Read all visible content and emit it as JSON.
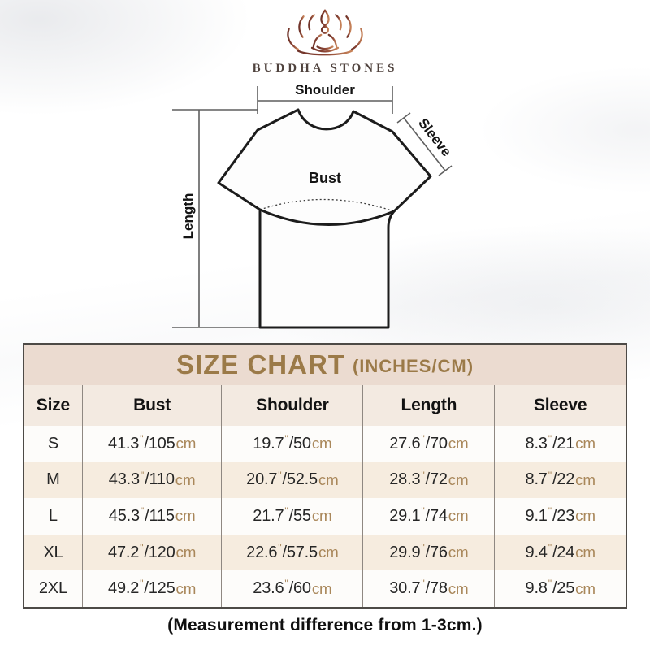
{
  "logo": {
    "brand": "BUDDHA STONES"
  },
  "diagram": {
    "shoulder_label": "Shoulder",
    "sleeve_label": "Sleeve",
    "bust_label": "Bust",
    "length_label": "Length"
  },
  "size_chart": {
    "title": "SIZE CHART",
    "title_suffix": "(INCHES/CM)",
    "columns": [
      "Size",
      "Bust",
      "Shoulder",
      "Length",
      "Sleeve"
    ],
    "unit_inch_mark": "\"",
    "unit_cm": "cm",
    "rows": [
      {
        "size": "S",
        "bust": {
          "in": "41.3",
          "cm": "105"
        },
        "shoulder": {
          "in": "19.7",
          "cm": "50"
        },
        "length": {
          "in": "27.6",
          "cm": "70"
        },
        "sleeve": {
          "in": "8.3",
          "cm": "21"
        }
      },
      {
        "size": "M",
        "bust": {
          "in": "43.3",
          "cm": "110"
        },
        "shoulder": {
          "in": "20.7",
          "cm": "52.5"
        },
        "length": {
          "in": "28.3",
          "cm": "72"
        },
        "sleeve": {
          "in": "8.7",
          "cm": "22"
        }
      },
      {
        "size": "L",
        "bust": {
          "in": "45.3",
          "cm": "115"
        },
        "shoulder": {
          "in": "21.7",
          "cm": "55"
        },
        "length": {
          "in": "29.1",
          "cm": "74"
        },
        "sleeve": {
          "in": "9.1",
          "cm": "23"
        }
      },
      {
        "size": "XL",
        "bust": {
          "in": "47.2",
          "cm": "120"
        },
        "shoulder": {
          "in": "22.6",
          "cm": "57.5"
        },
        "length": {
          "in": "29.9",
          "cm": "76"
        },
        "sleeve": {
          "in": "9.4",
          "cm": "24"
        }
      },
      {
        "size": "2XL",
        "bust": {
          "in": "49.2",
          "cm": "125"
        },
        "shoulder": {
          "in": "23.6",
          "cm": "60"
        },
        "length": {
          "in": "30.7",
          "cm": "78"
        },
        "sleeve": {
          "in": "9.8",
          "cm": "25"
        }
      }
    ]
  },
  "footnote": "(Measurement difference from 1-3cm.)",
  "colors": {
    "header_band": "#ebdbd0",
    "title_gold": "#9b7a48",
    "unit_tan": "#a9875a",
    "row_alt": "#f6ecdf",
    "table_border": "#4d4a46",
    "logo_maroon": "#6f3329",
    "logo_copper": "#c8845a"
  },
  "chart_data": {
    "type": "table",
    "title": "SIZE CHART (INCHES/CM)",
    "columns": [
      "Size",
      "Bust",
      "Shoulder",
      "Length",
      "Sleeve"
    ],
    "rows": [
      [
        "S",
        "41.3\"/105cm",
        "19.7\"/50cm",
        "27.6\"/70cm",
        "8.3\"/21cm"
      ],
      [
        "M",
        "43.3\"/110cm",
        "20.7\"/52.5cm",
        "28.3\"/72cm",
        "8.7\"/22cm"
      ],
      [
        "L",
        "45.3\"/115cm",
        "21.7\"/55cm",
        "29.1\"/74cm",
        "9.1\"/23cm"
      ],
      [
        "XL",
        "47.2\"/120cm",
        "22.6\"/57.5cm",
        "29.9\"/76cm",
        "9.4\"/24cm"
      ],
      [
        "2XL",
        "49.2\"/125cm",
        "23.6\"/60cm",
        "30.7\"/78cm",
        "9.8\"/25cm"
      ]
    ],
    "note": "(Measurement difference from 1-3cm.)"
  }
}
